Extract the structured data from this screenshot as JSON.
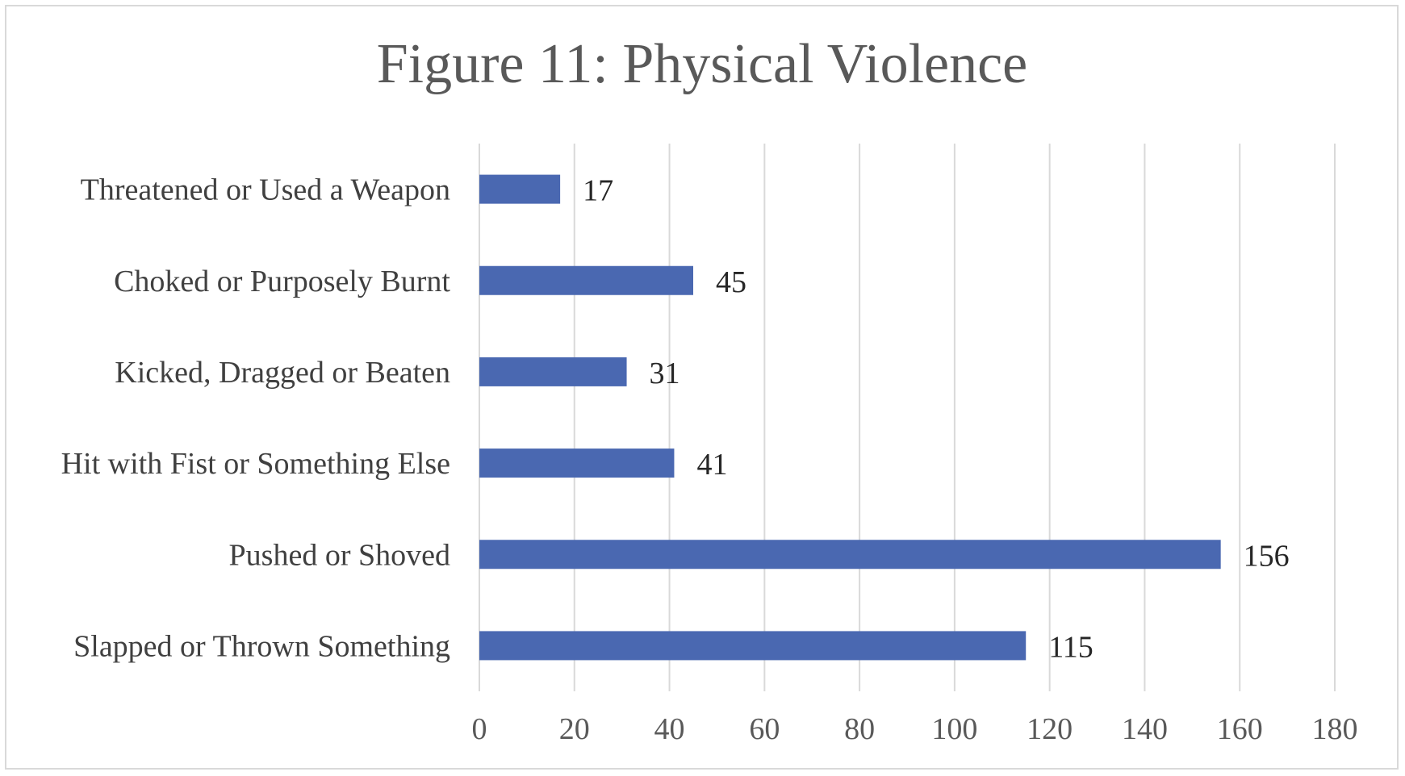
{
  "chart_data": {
    "type": "bar",
    "orientation": "horizontal",
    "title": "Figure 11: Physical Violence",
    "xlabel": "",
    "ylabel": "",
    "categories": [
      "Threatened or Used a Weapon",
      "Choked or Purposely Burnt",
      "Kicked, Dragged or Beaten",
      "Hit with Fist or Something Else",
      "Pushed  or Shoved",
      "Slapped or Thrown Something"
    ],
    "values": [
      17,
      45,
      31,
      41,
      156,
      115
    ],
    "xlim": [
      0,
      180
    ],
    "x_ticks": [
      0,
      20,
      40,
      60,
      80,
      100,
      120,
      140,
      160,
      180
    ],
    "grid": "vertical",
    "legend": "none",
    "data_labels": true,
    "bar_color": "#4a68b1",
    "grid_color": "#d9d9d9",
    "border_color": "#d9d9d9"
  }
}
